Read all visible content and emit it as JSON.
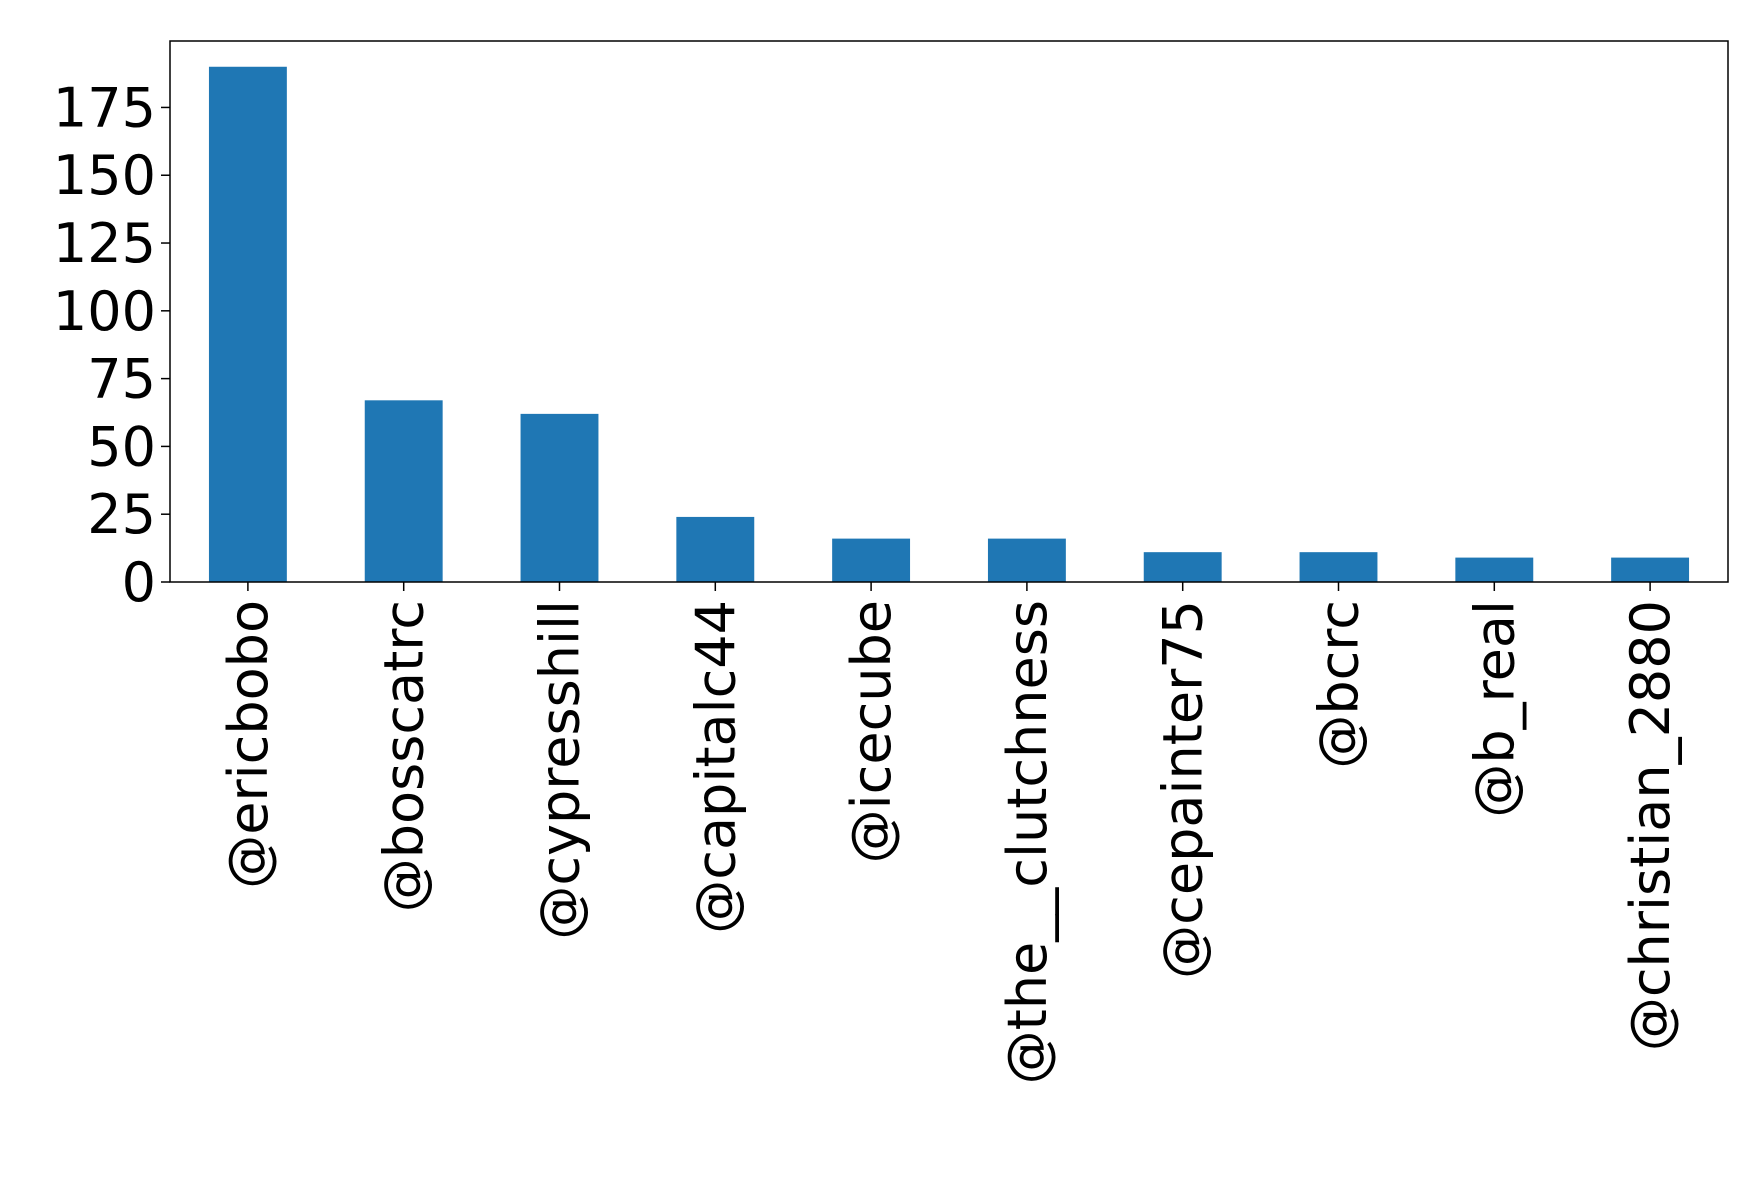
{
  "chart_data": {
    "type": "bar",
    "categories": [
      "@ericbobo",
      "@bosscatrc",
      "@cypresshill",
      "@capitalc44",
      "@icecube",
      "@the__clutchness",
      "@cepainter75",
      "@bcrc",
      "@b_real",
      "@christian_2880"
    ],
    "values": [
      190,
      67,
      62,
      24,
      16,
      16,
      11,
      11,
      9,
      9
    ],
    "color": "#1f77b4",
    "ylim": [
      0,
      199.5
    ],
    "yticks": [
      0,
      25,
      50,
      75,
      100,
      125,
      150,
      175
    ],
    "grid": false
  }
}
